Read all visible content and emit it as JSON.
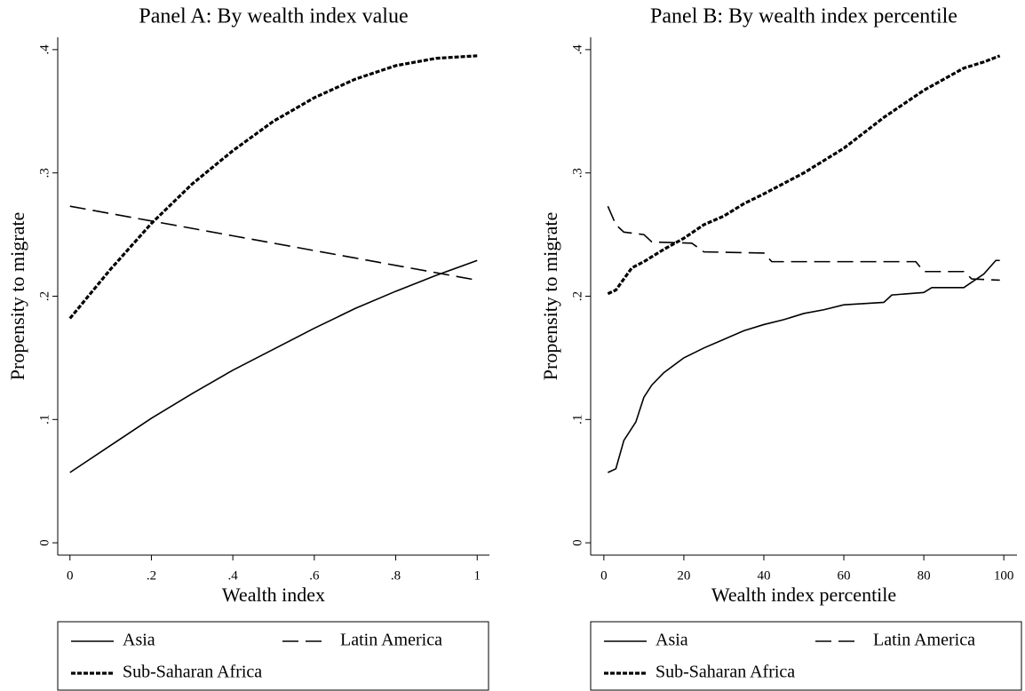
{
  "chart_data": [
    {
      "type": "line",
      "title": "Panel A: By wealth index value",
      "x_label": "Wealth index",
      "y_label": "Propensity to migrate",
      "xlim": [
        -0.03,
        1.03
      ],
      "ylim": [
        -0.01,
        0.41
      ],
      "xticks": [
        0,
        {
          "value": 0.2,
          "label": ".2"
        },
        {
          "value": 0.4,
          "label": ".4"
        },
        {
          "value": 0.6,
          "label": ".6"
        },
        {
          "value": 0.8,
          "label": ".8"
        },
        1
      ],
      "yticks": [
        0,
        {
          "value": 0.1,
          "label": ".1"
        },
        {
          "value": 0.2,
          "label": ".2"
        },
        {
          "value": 0.3,
          "label": ".3"
        },
        {
          "value": 0.4,
          "label": ".4"
        }
      ],
      "legend": "bottom",
      "series": [
        {
          "name": "Asia",
          "color": "#000000",
          "dash": "solid",
          "x": [
            0,
            0.1,
            0.2,
            0.3,
            0.4,
            0.5,
            0.6,
            0.7,
            0.8,
            0.9,
            1
          ],
          "values": [
            0.057,
            0.079,
            0.101,
            0.121,
            0.14,
            0.157,
            0.174,
            0.19,
            0.204,
            0.217,
            0.229
          ]
        },
        {
          "name": "Latin America",
          "color": "#000000",
          "dash": "dash",
          "x": [
            0,
            0.1,
            0.2,
            0.3,
            0.4,
            0.5,
            0.6,
            0.7,
            0.8,
            0.9,
            1
          ],
          "values": [
            0.273,
            0.267,
            0.261,
            0.255,
            0.249,
            0.243,
            0.237,
            0.231,
            0.225,
            0.219,
            0.213
          ]
        },
        {
          "name": "Sub-Saharan Africa",
          "color": "#000000",
          "dash": "dot",
          "x": [
            0,
            0.1,
            0.2,
            0.3,
            0.4,
            0.5,
            0.6,
            0.7,
            0.8,
            0.9,
            1
          ],
          "values": [
            0.182,
            0.222,
            0.259,
            0.291,
            0.318,
            0.342,
            0.361,
            0.376,
            0.387,
            0.393,
            0.395
          ]
        }
      ]
    },
    {
      "type": "line",
      "title": "Panel B: By wealth index percentile",
      "x_label": "Wealth index percentile",
      "y_label": "Propensity to migrate",
      "xlim": [
        -3.3,
        103.3
      ],
      "ylim": [
        -0.01,
        0.41
      ],
      "xticks": [
        0,
        20,
        40,
        60,
        80,
        100
      ],
      "yticks": [
        0,
        {
          "value": 0.1,
          "label": ".1"
        },
        {
          "value": 0.2,
          "label": ".2"
        },
        {
          "value": 0.3,
          "label": ".3"
        },
        {
          "value": 0.4,
          "label": ".4"
        }
      ],
      "legend": "bottom",
      "series": [
        {
          "name": "Asia",
          "color": "#000000",
          "dash": "solid",
          "x": [
            1,
            3,
            5,
            8,
            10,
            12,
            15,
            20,
            25,
            30,
            35,
            40,
            45,
            50,
            55,
            60,
            70,
            72,
            80,
            82,
            90,
            95,
            98,
            99
          ],
          "values": [
            0.057,
            0.06,
            0.083,
            0.098,
            0.118,
            0.128,
            0.138,
            0.15,
            0.158,
            0.165,
            0.172,
            0.177,
            0.181,
            0.186,
            0.189,
            0.193,
            0.195,
            0.201,
            0.203,
            0.207,
            0.207,
            0.218,
            0.229,
            0.229
          ]
        },
        {
          "name": "Latin America",
          "color": "#000000",
          "dash": "dash",
          "x": [
            1,
            3,
            5,
            10,
            12,
            22,
            25,
            40,
            42,
            78,
            80,
            90,
            92,
            99
          ],
          "values": [
            0.273,
            0.258,
            0.252,
            0.25,
            0.244,
            0.243,
            0.236,
            0.235,
            0.228,
            0.228,
            0.22,
            0.22,
            0.214,
            0.213
          ]
        },
        {
          "name": "Sub-Saharan Africa",
          "color": "#000000",
          "dash": "dot",
          "x": [
            1,
            3,
            7,
            10,
            15,
            20,
            25,
            30,
            35,
            40,
            50,
            60,
            70,
            80,
            90,
            95,
            99
          ],
          "values": [
            0.202,
            0.205,
            0.223,
            0.228,
            0.238,
            0.247,
            0.258,
            0.265,
            0.275,
            0.283,
            0.3,
            0.32,
            0.345,
            0.367,
            0.385,
            0.39,
            0.395
          ]
        }
      ]
    }
  ]
}
